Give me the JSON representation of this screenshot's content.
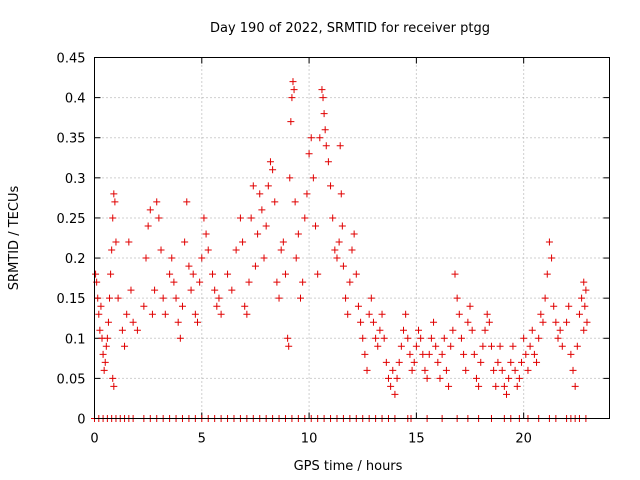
{
  "chart_data": {
    "type": "scatter",
    "title": "Day 190 of 2022, SRMTID for receiver ptgg",
    "xlabel": "GPS time / hours",
    "ylabel": "SRMTID / TECUs",
    "xlim": [
      0,
      24
    ],
    "ylim": [
      0,
      0.45
    ],
    "xticks": [
      0,
      5,
      10,
      15,
      20
    ],
    "xtick_labels": [
      "0",
      "5",
      "10",
      "15",
      "20"
    ],
    "yticks": [
      0,
      0.05,
      0.1,
      0.15,
      0.2,
      0.25,
      0.3,
      0.35,
      0.4,
      0.45
    ],
    "ytick_labels": [
      "0",
      "0.05",
      "0.1",
      "0.15",
      "0.2",
      "0.25",
      "0.3",
      "0.35",
      "0.4",
      "0.45"
    ],
    "grid": true,
    "marker": "plus",
    "marker_color": "#e00000",
    "series": [
      {
        "name": "SRMTID",
        "points": [
          [
            0.05,
            0.18
          ],
          [
            0.1,
            0.17
          ],
          [
            0.15,
            0.15
          ],
          [
            0.2,
            0.13
          ],
          [
            0.25,
            0.11
          ],
          [
            0.3,
            0.14
          ],
          [
            0.35,
            0.1
          ],
          [
            0.4,
            0.08
          ],
          [
            0.45,
            0.06
          ],
          [
            0.5,
            0.07
          ],
          [
            0.55,
            0.09
          ],
          [
            0.6,
            0.1
          ],
          [
            0.65,
            0.12
          ],
          [
            0.7,
            0.15
          ],
          [
            0.75,
            0.18
          ],
          [
            0.8,
            0.21
          ],
          [
            0.85,
            0.25
          ],
          [
            0.9,
            0.28
          ],
          [
            0.95,
            0.27
          ],
          [
            1.0,
            0.22
          ],
          [
            0.85,
            0.05
          ],
          [
            0.9,
            0.04
          ],
          [
            1.1,
            0.15
          ],
          [
            1.3,
            0.11
          ],
          [
            1.4,
            0.09
          ],
          [
            1.5,
            0.13
          ],
          [
            1.6,
            0.22
          ],
          [
            1.7,
            0.16
          ],
          [
            1.8,
            0.12
          ],
          [
            2.0,
            0.11
          ],
          [
            2.3,
            0.14
          ],
          [
            2.4,
            0.2
          ],
          [
            2.5,
            0.24
          ],
          [
            2.6,
            0.26
          ],
          [
            2.7,
            0.13
          ],
          [
            2.8,
            0.16
          ],
          [
            2.9,
            0.27
          ],
          [
            3.0,
            0.25
          ],
          [
            3.1,
            0.21
          ],
          [
            3.2,
            0.15
          ],
          [
            3.3,
            0.13
          ],
          [
            3.5,
            0.18
          ],
          [
            3.6,
            0.2
          ],
          [
            3.7,
            0.17
          ],
          [
            3.8,
            0.15
          ],
          [
            3.9,
            0.12
          ],
          [
            4.0,
            0.1
          ],
          [
            4.1,
            0.14
          ],
          [
            4.2,
            0.22
          ],
          [
            4.3,
            0.27
          ],
          [
            4.4,
            0.19
          ],
          [
            4.5,
            0.16
          ],
          [
            4.6,
            0.18
          ],
          [
            4.7,
            0.13
          ],
          [
            4.8,
            0.12
          ],
          [
            4.9,
            0.17
          ],
          [
            5.0,
            0.2
          ],
          [
            5.1,
            0.25
          ],
          [
            5.2,
            0.23
          ],
          [
            5.3,
            0.21
          ],
          [
            5.5,
            0.18
          ],
          [
            5.6,
            0.16
          ],
          [
            5.7,
            0.14
          ],
          [
            5.8,
            0.15
          ],
          [
            5.9,
            0.13
          ],
          [
            6.2,
            0.18
          ],
          [
            6.4,
            0.16
          ],
          [
            6.6,
            0.21
          ],
          [
            6.8,
            0.25
          ],
          [
            6.9,
            0.22
          ],
          [
            7.0,
            0.14
          ],
          [
            7.1,
            0.13
          ],
          [
            7.2,
            0.17
          ],
          [
            7.3,
            0.25
          ],
          [
            7.4,
            0.29
          ],
          [
            7.5,
            0.19
          ],
          [
            7.6,
            0.23
          ],
          [
            7.7,
            0.28
          ],
          [
            7.8,
            0.26
          ],
          [
            7.9,
            0.2
          ],
          [
            8.0,
            0.24
          ],
          [
            8.1,
            0.29
          ],
          [
            8.2,
            0.32
          ],
          [
            8.3,
            0.31
          ],
          [
            8.4,
            0.27
          ],
          [
            8.5,
            0.17
          ],
          [
            8.6,
            0.15
          ],
          [
            8.7,
            0.21
          ],
          [
            8.8,
            0.22
          ],
          [
            8.9,
            0.18
          ],
          [
            9.0,
            0.1
          ],
          [
            9.05,
            0.09
          ],
          [
            9.1,
            0.3
          ],
          [
            9.15,
            0.37
          ],
          [
            9.2,
            0.4
          ],
          [
            9.25,
            0.42
          ],
          [
            9.3,
            0.41
          ],
          [
            9.35,
            0.27
          ],
          [
            9.4,
            0.2
          ],
          [
            9.5,
            0.23
          ],
          [
            9.6,
            0.15
          ],
          [
            9.7,
            0.17
          ],
          [
            9.8,
            0.25
          ],
          [
            9.9,
            0.28
          ],
          [
            10.0,
            0.33
          ],
          [
            10.1,
            0.35
          ],
          [
            10.2,
            0.3
          ],
          [
            10.3,
            0.24
          ],
          [
            10.4,
            0.18
          ],
          [
            10.5,
            0.35
          ],
          [
            10.6,
            0.41
          ],
          [
            10.65,
            0.4
          ],
          [
            10.7,
            0.38
          ],
          [
            10.75,
            0.36
          ],
          [
            10.8,
            0.34
          ],
          [
            10.9,
            0.32
          ],
          [
            11.0,
            0.29
          ],
          [
            11.1,
            0.25
          ],
          [
            11.2,
            0.21
          ],
          [
            11.3,
            0.2
          ],
          [
            11.4,
            0.22
          ],
          [
            11.45,
            0.34
          ],
          [
            11.5,
            0.28
          ],
          [
            11.55,
            0.24
          ],
          [
            11.6,
            0.19
          ],
          [
            11.7,
            0.15
          ],
          [
            11.8,
            0.13
          ],
          [
            11.9,
            0.17
          ],
          [
            12.0,
            0.21
          ],
          [
            12.1,
            0.23
          ],
          [
            12.2,
            0.18
          ],
          [
            12.3,
            0.14
          ],
          [
            12.4,
            0.12
          ],
          [
            12.5,
            0.1
          ],
          [
            12.6,
            0.08
          ],
          [
            12.7,
            0.06
          ],
          [
            12.8,
            0.13
          ],
          [
            12.9,
            0.15
          ],
          [
            13.0,
            0.12
          ],
          [
            13.1,
            0.1
          ],
          [
            13.2,
            0.09
          ],
          [
            13.3,
            0.11
          ],
          [
            13.4,
            0.13
          ],
          [
            13.5,
            0.1
          ],
          [
            13.6,
            0.07
          ],
          [
            13.7,
            0.05
          ],
          [
            13.8,
            0.04
          ],
          [
            13.9,
            0.06
          ],
          [
            14.0,
            0.03
          ],
          [
            14.1,
            0.05
          ],
          [
            14.2,
            0.07
          ],
          [
            14.3,
            0.09
          ],
          [
            14.4,
            0.11
          ],
          [
            14.5,
            0.13
          ],
          [
            14.6,
            0.1
          ],
          [
            14.7,
            0.08
          ],
          [
            14.8,
            0.06
          ],
          [
            14.9,
            0.07
          ],
          [
            15.0,
            0.09
          ],
          [
            15.1,
            0.11
          ],
          [
            15.2,
            0.1
          ],
          [
            15.3,
            0.08
          ],
          [
            15.4,
            0.06
          ],
          [
            15.5,
            0.05
          ],
          [
            15.6,
            0.08
          ],
          [
            15.7,
            0.1
          ],
          [
            15.8,
            0.12
          ],
          [
            15.9,
            0.09
          ],
          [
            16.0,
            0.07
          ],
          [
            16.1,
            0.05
          ],
          [
            16.2,
            0.08
          ],
          [
            16.3,
            0.1
          ],
          [
            16.4,
            0.06
          ],
          [
            16.5,
            0.04
          ],
          [
            16.6,
            0.09
          ],
          [
            16.7,
            0.11
          ],
          [
            16.8,
            0.18
          ],
          [
            16.9,
            0.15
          ],
          [
            17.0,
            0.13
          ],
          [
            17.1,
            0.1
          ],
          [
            17.2,
            0.08
          ],
          [
            17.3,
            0.06
          ],
          [
            17.4,
            0.12
          ],
          [
            17.5,
            0.14
          ],
          [
            17.6,
            0.11
          ],
          [
            17.7,
            0.08
          ],
          [
            17.8,
            0.05
          ],
          [
            17.9,
            0.04
          ],
          [
            18.0,
            0.07
          ],
          [
            18.1,
            0.09
          ],
          [
            18.2,
            0.11
          ],
          [
            18.3,
            0.13
          ],
          [
            18.4,
            0.12
          ],
          [
            18.5,
            0.09
          ],
          [
            18.6,
            0.06
          ],
          [
            18.7,
            0.04
          ],
          [
            18.8,
            0.07
          ],
          [
            18.9,
            0.09
          ],
          [
            19.0,
            0.06
          ],
          [
            19.1,
            0.04
          ],
          [
            19.2,
            0.03
          ],
          [
            19.3,
            0.05
          ],
          [
            19.4,
            0.07
          ],
          [
            19.5,
            0.09
          ],
          [
            19.6,
            0.06
          ],
          [
            19.7,
            0.04
          ],
          [
            19.8,
            0.05
          ],
          [
            19.9,
            0.07
          ],
          [
            20.0,
            0.1
          ],
          [
            20.1,
            0.08
          ],
          [
            20.2,
            0.06
          ],
          [
            20.3,
            0.09
          ],
          [
            20.4,
            0.11
          ],
          [
            20.5,
            0.08
          ],
          [
            20.6,
            0.07
          ],
          [
            20.7,
            0.1
          ],
          [
            20.8,
            0.13
          ],
          [
            20.9,
            0.12
          ],
          [
            21.0,
            0.15
          ],
          [
            21.1,
            0.18
          ],
          [
            21.2,
            0.22
          ],
          [
            21.3,
            0.2
          ],
          [
            21.4,
            0.14
          ],
          [
            21.5,
            0.12
          ],
          [
            21.6,
            0.1
          ],
          [
            21.7,
            0.11
          ],
          [
            21.8,
            0.09
          ],
          [
            22.0,
            0.12
          ],
          [
            22.1,
            0.14
          ],
          [
            22.2,
            0.08
          ],
          [
            22.3,
            0.06
          ],
          [
            22.4,
            0.04
          ],
          [
            22.5,
            0.09
          ],
          [
            22.6,
            0.13
          ],
          [
            22.7,
            0.15
          ],
          [
            22.8,
            0.17
          ],
          [
            22.85,
            0.14
          ],
          [
            22.9,
            0.16
          ],
          [
            22.95,
            0.12
          ],
          [
            22.8,
            0.11
          ]
        ]
      },
      {
        "name": "zero-baseline",
        "points": [
          [
            0.0,
            0
          ],
          [
            0.2,
            0
          ],
          [
            0.4,
            0
          ],
          [
            0.6,
            0
          ],
          [
            0.8,
            0
          ],
          [
            1.0,
            0
          ],
          [
            1.2,
            0
          ],
          [
            1.4,
            0
          ],
          [
            1.6,
            0
          ],
          [
            1.8,
            0
          ],
          [
            2.3,
            0
          ],
          [
            2.6,
            0
          ],
          [
            2.9,
            0
          ],
          [
            3.2,
            0
          ],
          [
            3.5,
            0
          ],
          [
            3.8,
            0
          ],
          [
            4.1,
            0
          ],
          [
            4.4,
            0
          ],
          [
            4.7,
            0
          ],
          [
            5.0,
            0
          ],
          [
            5.3,
            0
          ],
          [
            5.6,
            0
          ],
          [
            5.9,
            0
          ],
          [
            6.2,
            0
          ],
          [
            6.5,
            0
          ],
          [
            6.8,
            0
          ],
          [
            7.1,
            0
          ],
          [
            7.4,
            0
          ],
          [
            7.7,
            0
          ],
          [
            8.0,
            0
          ],
          [
            8.3,
            0
          ],
          [
            8.6,
            0
          ],
          [
            8.9,
            0
          ],
          [
            9.2,
            0
          ],
          [
            9.5,
            0
          ],
          [
            9.8,
            0
          ],
          [
            10.1,
            0
          ],
          [
            10.4,
            0
          ],
          [
            10.7,
            0
          ],
          [
            11.0,
            0
          ],
          [
            11.3,
            0
          ],
          [
            11.6,
            0
          ],
          [
            11.9,
            0
          ],
          [
            12.2,
            0
          ],
          [
            12.5,
            0
          ],
          [
            12.8,
            0
          ],
          [
            13.1,
            0
          ],
          [
            13.4,
            0
          ],
          [
            13.7,
            0
          ],
          [
            14.0,
            0
          ],
          [
            14.6,
            0
          ],
          [
            14.75,
            0
          ],
          [
            15.5,
            0
          ],
          [
            16.2,
            0
          ],
          [
            16.9,
            0
          ],
          [
            17.4,
            0
          ],
          [
            17.9,
            0
          ],
          [
            18.5,
            0
          ],
          [
            19.1,
            0
          ],
          [
            19.4,
            0
          ],
          [
            19.8,
            0
          ],
          [
            20.2,
            0
          ],
          [
            20.7,
            0
          ],
          [
            21.2,
            0
          ],
          [
            21.5,
            0
          ],
          [
            22.0,
            0
          ],
          [
            22.2,
            0
          ],
          [
            22.4,
            0
          ],
          [
            22.6,
            0
          ],
          [
            22.9,
            0
          ]
        ]
      }
    ]
  }
}
